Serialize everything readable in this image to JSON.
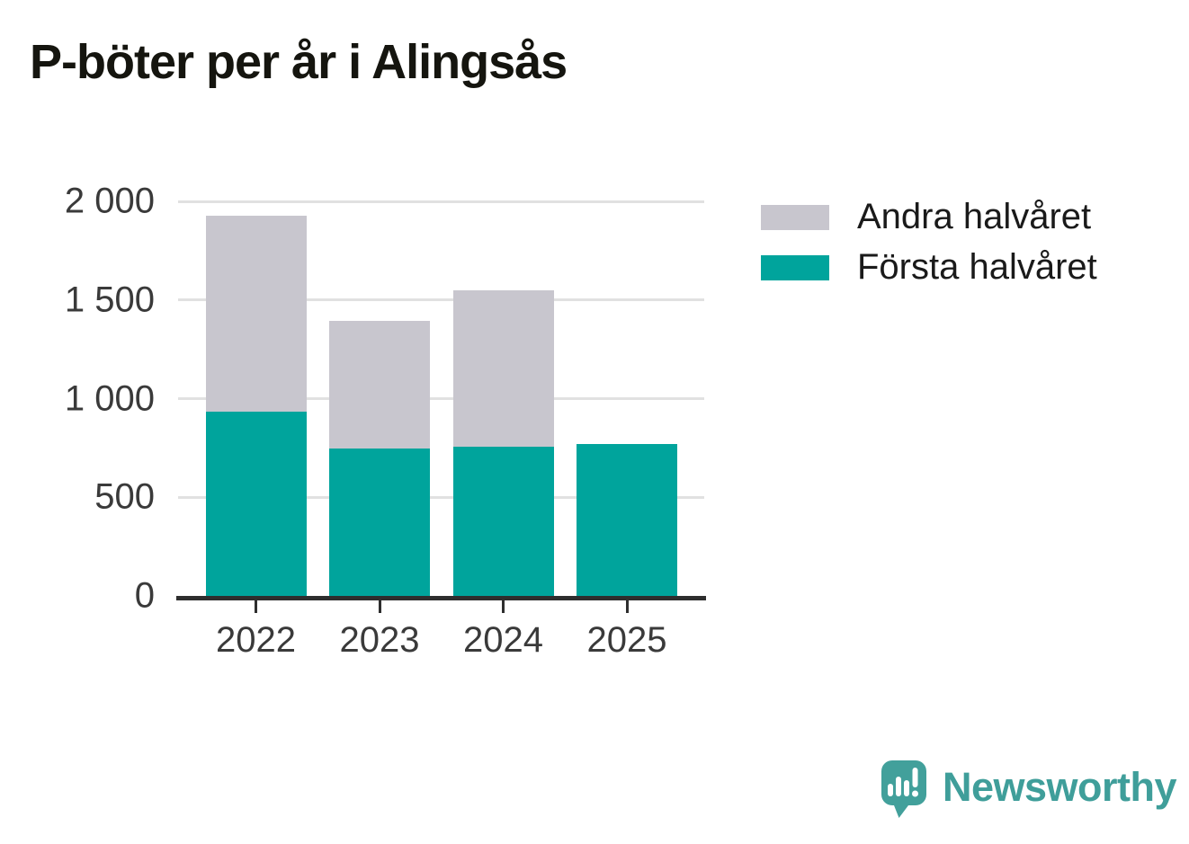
{
  "title": "P-böter per år i Alingsås",
  "legend": [
    {
      "label": "Andra halvåret",
      "color": "#c8c6ce"
    },
    {
      "label": "Första halvåret",
      "color": "#00a49c"
    }
  ],
  "chart_data": {
    "type": "bar",
    "stacked": true,
    "title": "P-böter per år i Alingsås",
    "categories": [
      "2022",
      "2023",
      "2024",
      "2025"
    ],
    "series": [
      {
        "name": "Första halvåret",
        "color": "#00a49c",
        "values": [
          935,
          745,
          755,
          770
        ]
      },
      {
        "name": "Andra halvåret",
        "color": "#c8c6ce",
        "values": [
          990,
          650,
          795,
          0
        ]
      }
    ],
    "totals": [
      1925,
      1395,
      1550,
      770
    ],
    "xlabel": "",
    "ylabel": "",
    "ylim": [
      0,
      2000
    ],
    "yticks": {
      "values": [
        0,
        500,
        1000,
        1500,
        2000
      ],
      "labels": [
        "0",
        "500",
        "1 000",
        "1 500",
        "2 000"
      ]
    },
    "grid": true,
    "legend_position": "top-right",
    "colors": {
      "axis": "#2e2e2e",
      "gridline": "#e1e1e1",
      "tick_text": "#3a3a3a",
      "title_text": "#15150f"
    }
  },
  "branding": {
    "logo_text": "Newsworthy",
    "logo_color": "#3f9e9a",
    "icon_color": "#42a09b"
  }
}
